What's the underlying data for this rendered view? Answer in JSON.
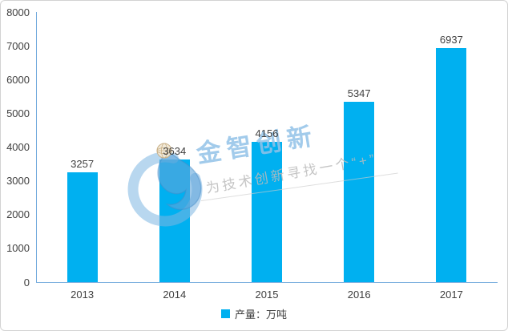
{
  "chart_data": {
    "type": "bar",
    "title": "",
    "categories": [
      "2013",
      "2014",
      "2015",
      "2016",
      "2017"
    ],
    "values": [
      3257,
      3634,
      4156,
      5347,
      6937
    ],
    "series": [
      {
        "name": "产量：万吨",
        "values": [
          3257,
          3634,
          4156,
          5347,
          6937
        ]
      }
    ],
    "xlabel": "",
    "ylabel": "",
    "ylim": [
      0,
      8000
    ],
    "ytick_interval": 1000,
    "grid": false,
    "legend_position": "bottom",
    "data_labels": true
  },
  "legend": {
    "items": [
      {
        "label": "产量：万吨",
        "color": "#00B0F0"
      }
    ]
  },
  "watermark": {
    "brand": "金智创新",
    "slogan": "为技术创新寻找一个“+”",
    "logo_icon": "swirl-logo",
    "globe_icon": "globe"
  },
  "colors": {
    "bar": "#00B0F0",
    "y_axis": "#6FA8DC",
    "x_axis": "#7FB2E0",
    "text": "#404040",
    "watermark_blue": "#92C2E8",
    "watermark_gray": "#BBBBBB"
  }
}
